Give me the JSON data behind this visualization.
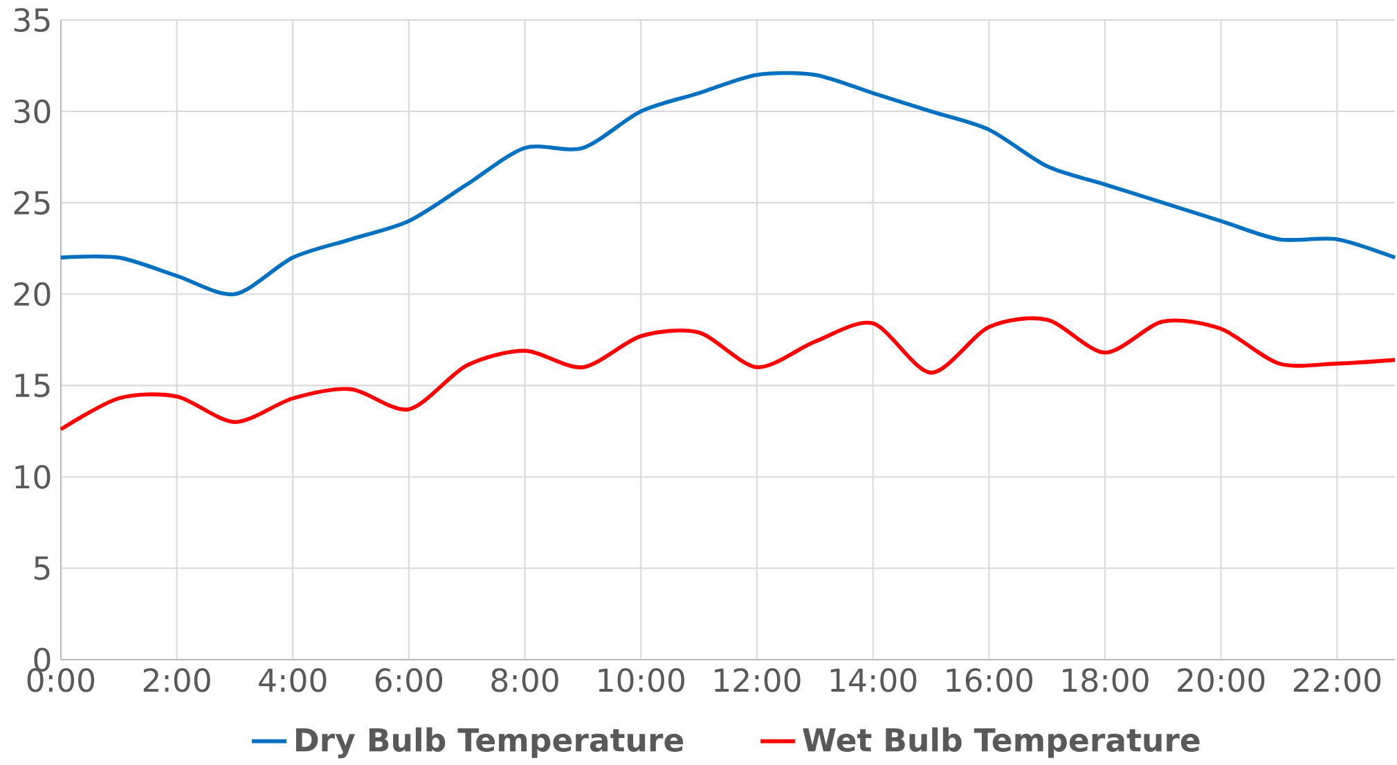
{
  "chart_data": {
    "type": "line",
    "x": [
      0,
      1,
      2,
      3,
      4,
      5,
      6,
      7,
      8,
      9,
      10,
      11,
      12,
      13,
      14,
      15,
      16,
      17,
      18,
      19,
      20,
      21,
      22,
      23
    ],
    "series": [
      {
        "name": "Dry Bulb Temperature",
        "color": "#0070c0",
        "values": [
          22,
          22,
          21,
          20,
          22,
          23,
          24,
          26,
          28,
          28,
          30,
          31,
          32,
          32,
          31,
          30,
          29,
          27,
          26,
          25,
          24,
          23,
          23,
          22
        ]
      },
      {
        "name": "Wet Bulb Temperature",
        "color": "#ff0000",
        "values": [
          12.6,
          14.3,
          14.4,
          13,
          14.3,
          14.8,
          13.7,
          16.1,
          16.9,
          16,
          17.7,
          17.9,
          16,
          17.4,
          18.4,
          15.7,
          18.2,
          18.6,
          16.8,
          18.5,
          18.1,
          16.2,
          16.2,
          16.4
        ]
      }
    ],
    "xlim": [
      0,
      23
    ],
    "xticks": [
      {
        "value": 0,
        "label": "0:00"
      },
      {
        "value": 2,
        "label": "2:00"
      },
      {
        "value": 4,
        "label": "4:00"
      },
      {
        "value": 6,
        "label": "6:00"
      },
      {
        "value": 8,
        "label": "8:00"
      },
      {
        "value": 10,
        "label": "10:00"
      },
      {
        "value": 12,
        "label": "12:00"
      },
      {
        "value": 14,
        "label": "14:00"
      },
      {
        "value": 16,
        "label": "16:00"
      },
      {
        "value": 18,
        "label": "18:00"
      },
      {
        "value": 20,
        "label": "20:00"
      },
      {
        "value": 22,
        "label": "22:00"
      }
    ],
    "ylim": [
      0,
      35
    ],
    "yticks": [
      0,
      5,
      10,
      15,
      20,
      25,
      30,
      35
    ],
    "grid": true,
    "legend": "bottom",
    "marker": "none",
    "line_style": "solid"
  }
}
